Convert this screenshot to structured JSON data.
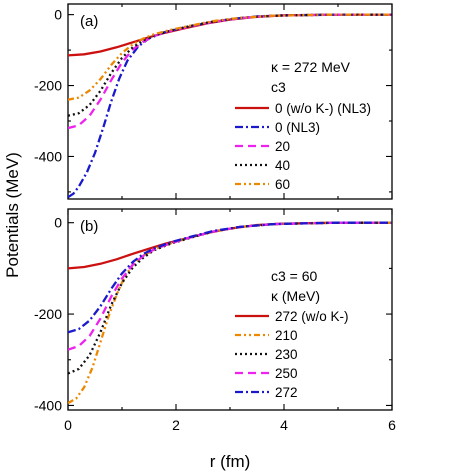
{
  "ylabel": "Potentials (MeV)",
  "xlabel": "r (fm)",
  "styles": {
    "solid": {
      "color": "#cc1111",
      "dash": ""
    },
    "dashdot": {
      "color": "#1a1acc",
      "dash": "8,3,2,3"
    },
    "dash": {
      "color": "#ee22ee",
      "dash": "8,5"
    },
    "dot": {
      "color": "#111111",
      "dash": "2,3"
    },
    "dashdot2": {
      "color": "#ee8800",
      "dash": "6,3,2,3,2,3"
    }
  },
  "chart_data": [
    {
      "type": "line",
      "panel_label": "(a)",
      "xlim": [
        0,
        6
      ],
      "ylim": [
        -520,
        30
      ],
      "xticks": [
        0,
        2,
        4,
        6
      ],
      "yticks": [
        0,
        -200,
        -400
      ],
      "ytick_labels": [
        "0",
        "-200",
        "-400"
      ],
      "legend_header": [
        "κ = 272 MeV",
        "c3"
      ],
      "legend_placement": "right",
      "series": [
        {
          "name": "0 (w/o K-) (NL3)",
          "style": "solid",
          "x": [
            0,
            0.3,
            0.6,
            0.9,
            1.2,
            1.5,
            1.8,
            2.2,
            2.6,
            3.0,
            3.5,
            4.0,
            4.5,
            5.0,
            6.0
          ],
          "y": [
            -115,
            -112,
            -104,
            -92,
            -78,
            -64,
            -51,
            -37,
            -24,
            -14,
            -6,
            -2,
            -1,
            0,
            0
          ]
        },
        {
          "name": "0 (NL3)",
          "style": "dashdot",
          "x": [
            0,
            0.1,
            0.2,
            0.35,
            0.5,
            0.65,
            0.8,
            0.95,
            1.1,
            1.3,
            1.5,
            1.8,
            2.2,
            2.6,
            3.0,
            3.5,
            4.0,
            4.5,
            5.0,
            6.0
          ],
          "y": [
            -515,
            -505,
            -485,
            -445,
            -390,
            -320,
            -245,
            -180,
            -130,
            -90,
            -67,
            -49,
            -35,
            -23,
            -13,
            -5,
            -2,
            -1,
            0,
            0
          ]
        },
        {
          "name": "20",
          "style": "dash",
          "x": [
            0,
            0.2,
            0.4,
            0.6,
            0.8,
            1.0,
            1.2,
            1.4,
            1.6,
            1.9,
            2.3,
            2.7,
            3.2,
            3.8,
            4.5,
            5.0,
            6.0
          ],
          "y": [
            -320,
            -312,
            -285,
            -240,
            -185,
            -135,
            -98,
            -76,
            -60,
            -46,
            -32,
            -20,
            -10,
            -3,
            -1,
            0,
            0
          ]
        },
        {
          "name": "40",
          "style": "dot",
          "x": [
            0,
            0.2,
            0.4,
            0.6,
            0.8,
            1.0,
            1.2,
            1.4,
            1.6,
            1.9,
            2.3,
            2.7,
            3.2,
            3.8,
            4.5,
            5.0,
            6.0
          ],
          "y": [
            -285,
            -278,
            -255,
            -215,
            -165,
            -122,
            -92,
            -72,
            -58,
            -45,
            -31,
            -19,
            -9,
            -3,
            -1,
            0,
            0
          ]
        },
        {
          "name": "60",
          "style": "dashdot2",
          "x": [
            0,
            0.2,
            0.4,
            0.6,
            0.8,
            1.0,
            1.2,
            1.4,
            1.6,
            1.9,
            2.3,
            2.7,
            3.2,
            3.8,
            4.5,
            5.0,
            6.0
          ],
          "y": [
            -240,
            -234,
            -214,
            -182,
            -142,
            -108,
            -84,
            -67,
            -55,
            -43,
            -30,
            -18,
            -9,
            -3,
            -1,
            0,
            0
          ]
        }
      ]
    },
    {
      "type": "line",
      "panel_label": "(b)",
      "xlim": [
        0,
        6
      ],
      "ylim": [
        -410,
        30
      ],
      "xticks": [
        0,
        2,
        4,
        6
      ],
      "xtick_labels": [
        "0",
        "2",
        "4",
        "6"
      ],
      "yticks": [
        0,
        -200,
        -400
      ],
      "ytick_labels": [
        "0",
        "-200",
        "-400"
      ],
      "legend_header": [
        "c3 = 60",
        "κ (MeV)"
      ],
      "legend_placement": "right",
      "series": [
        {
          "name": "272 (w/o K-)",
          "style": "solid",
          "x": [
            0,
            0.3,
            0.6,
            0.9,
            1.2,
            1.5,
            1.8,
            2.2,
            2.6,
            3.0,
            3.5,
            4.0,
            4.5,
            5.0,
            6.0
          ],
          "y": [
            -100,
            -97,
            -90,
            -80,
            -68,
            -57,
            -46,
            -34,
            -22,
            -13,
            -5,
            -2,
            -1,
            0,
            0
          ]
        },
        {
          "name": "210",
          "style": "dashdot2",
          "x": [
            0,
            0.15,
            0.3,
            0.45,
            0.6,
            0.75,
            0.9,
            1.05,
            1.2,
            1.4,
            1.6,
            1.9,
            2.3,
            2.7,
            3.2,
            3.8,
            4.5,
            5.0,
            6.0
          ],
          "y": [
            -395,
            -385,
            -360,
            -318,
            -262,
            -205,
            -158,
            -118,
            -92,
            -72,
            -58,
            -45,
            -31,
            -19,
            -9,
            -3,
            -1,
            0,
            0
          ]
        },
        {
          "name": "230",
          "style": "dot",
          "x": [
            0,
            0.2,
            0.4,
            0.6,
            0.8,
            1.0,
            1.2,
            1.4,
            1.6,
            1.9,
            2.3,
            2.7,
            3.2,
            3.8,
            4.5,
            5.0,
            6.0
          ],
          "y": [
            -330,
            -320,
            -290,
            -240,
            -180,
            -132,
            -98,
            -76,
            -60,
            -46,
            -32,
            -19,
            -9,
            -3,
            -1,
            0,
            0
          ]
        },
        {
          "name": "250",
          "style": "dash",
          "x": [
            0,
            0.2,
            0.4,
            0.6,
            0.8,
            1.0,
            1.2,
            1.4,
            1.6,
            1.9,
            2.3,
            2.7,
            3.2,
            3.8,
            4.5,
            5.0,
            6.0
          ],
          "y": [
            -278,
            -270,
            -248,
            -210,
            -162,
            -122,
            -92,
            -72,
            -58,
            -45,
            -31,
            -19,
            -9,
            -3,
            -1,
            0,
            0
          ]
        },
        {
          "name": "272",
          "style": "dashdot",
          "x": [
            0,
            0.2,
            0.4,
            0.6,
            0.8,
            1.0,
            1.2,
            1.4,
            1.6,
            1.9,
            2.3,
            2.7,
            3.2,
            3.8,
            4.5,
            5.0,
            6.0
          ],
          "y": [
            -240,
            -233,
            -214,
            -183,
            -145,
            -111,
            -86,
            -68,
            -56,
            -43,
            -30,
            -18,
            -9,
            -3,
            -1,
            0,
            0
          ]
        }
      ]
    }
  ]
}
